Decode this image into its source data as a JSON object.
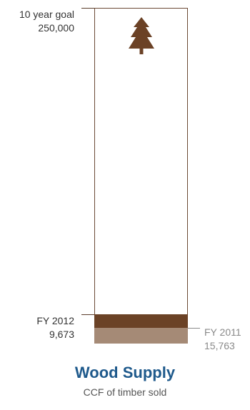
{
  "colors": {
    "fy2012": "#6b4226",
    "fy2011": "#a58a76",
    "outline": "#6b4a35",
    "title": "#1f5a8c",
    "tree": "#6b4226"
  },
  "icons": {
    "tree": "tree-icon"
  },
  "goal": {
    "label": "10 year goal",
    "value": "250,000"
  },
  "fy2012": {
    "label": "FY 2012",
    "value": "9,673"
  },
  "fy2011": {
    "label": "FY 2011",
    "value": "15,763"
  },
  "title": "Wood Supply",
  "subtitle": "CCF of timber sold",
  "chart_data": {
    "type": "bar",
    "title": "Wood Supply",
    "ylabel": "CCF of timber sold",
    "goal": 250000,
    "ylim": [
      0,
      250000
    ],
    "series": [
      {
        "name": "FY 2012",
        "value": 9673
      },
      {
        "name": "FY 2011",
        "value": 15763
      }
    ]
  }
}
